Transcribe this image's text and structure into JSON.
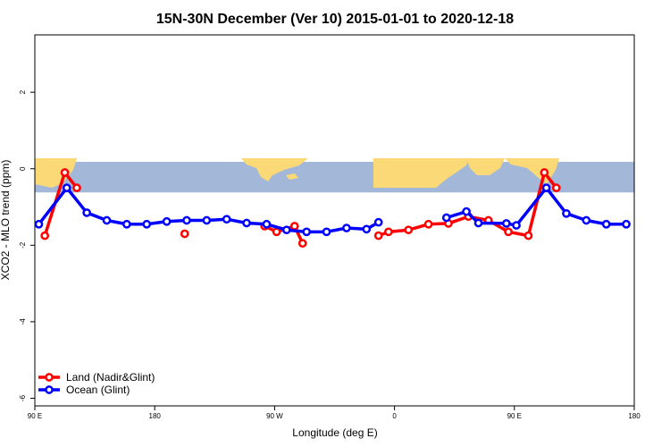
{
  "chart_data": {
    "type": "line",
    "title": "15N-30N December (Ver 10)   2015-01-01 to 2020-12-18",
    "xlabel": "Longitude (deg E)",
    "ylabel": "XCO2 - MLO trend (ppm)",
    "xlim": [
      90,
      390
    ],
    "ylim": [
      -6.2,
      3.5
    ],
    "x_ticks": [
      {
        "value": 90,
        "label": "90 E"
      },
      {
        "value": 150,
        "label": "180"
      },
      {
        "value": 210,
        "label": "90 W"
      },
      {
        "value": 270,
        "label": "0"
      },
      {
        "value": 330,
        "label": "90 E"
      },
      {
        "value": 390,
        "label": "180"
      }
    ],
    "y_ticks": [
      {
        "value": 2,
        "label": "2"
      },
      {
        "value": 0,
        "label": "0"
      },
      {
        "value": -2,
        "label": "-2"
      },
      {
        "value": -4,
        "label": "-4"
      },
      {
        "value": -6,
        "label": "-6"
      }
    ],
    "map_band": {
      "y_top": 0.18,
      "y_bottom": -0.62,
      "ocean_color": "#a3b8d8",
      "land_color": "#fcd977"
    },
    "legend": {
      "placement": "bottom-left"
    },
    "series": [
      {
        "name": "Land (Nadir&Glint)",
        "color": "#ff0000",
        "segments": [
          [
            [
              95,
              -1.75
            ],
            [
              105,
              -0.1
            ],
            [
              111,
              -0.5
            ]
          ],
          [
            [
              165,
              -1.7
            ]
          ],
          [
            [
              205,
              -1.5
            ],
            [
              211,
              -1.65
            ],
            [
              220,
              -1.5
            ],
            [
              224,
              -1.95
            ]
          ],
          [
            [
              262,
              -1.75
            ],
            [
              267,
              -1.65
            ],
            [
              277,
              -1.6
            ],
            [
              287,
              -1.45
            ],
            [
              297,
              -1.43
            ],
            [
              307,
              -1.25
            ],
            [
              317,
              -1.35
            ],
            [
              327,
              -1.65
            ],
            [
              337,
              -1.75
            ],
            [
              345,
              -0.1
            ],
            [
              351,
              -0.5
            ]
          ]
        ]
      },
      {
        "name": "Ocean (Glint)",
        "color": "#0000ff",
        "segments": [
          [
            [
              92,
              -1.45
            ],
            [
              106,
              -0.5
            ],
            [
              116,
              -1.15
            ],
            [
              126,
              -1.35
            ],
            [
              136,
              -1.45
            ],
            [
              146,
              -1.45
            ],
            [
              156,
              -1.38
            ],
            [
              166,
              -1.35
            ],
            [
              176,
              -1.35
            ],
            [
              186,
              -1.32
            ],
            [
              196,
              -1.42
            ],
            [
              206,
              -1.45
            ],
            [
              216,
              -1.6
            ],
            [
              226,
              -1.65
            ],
            [
              236,
              -1.65
            ],
            [
              246,
              -1.55
            ],
            [
              256,
              -1.58
            ],
            [
              262,
              -1.4
            ]
          ],
          [
            [
              296,
              -1.28
            ],
            [
              306,
              -1.12
            ],
            [
              312,
              -1.42
            ],
            [
              326,
              -1.43
            ],
            [
              331,
              -1.48
            ],
            [
              346,
              -0.5
            ],
            [
              356,
              -1.17
            ],
            [
              366,
              -1.35
            ],
            [
              376,
              -1.45
            ],
            [
              386,
              -1.45
            ]
          ]
        ]
      }
    ]
  }
}
